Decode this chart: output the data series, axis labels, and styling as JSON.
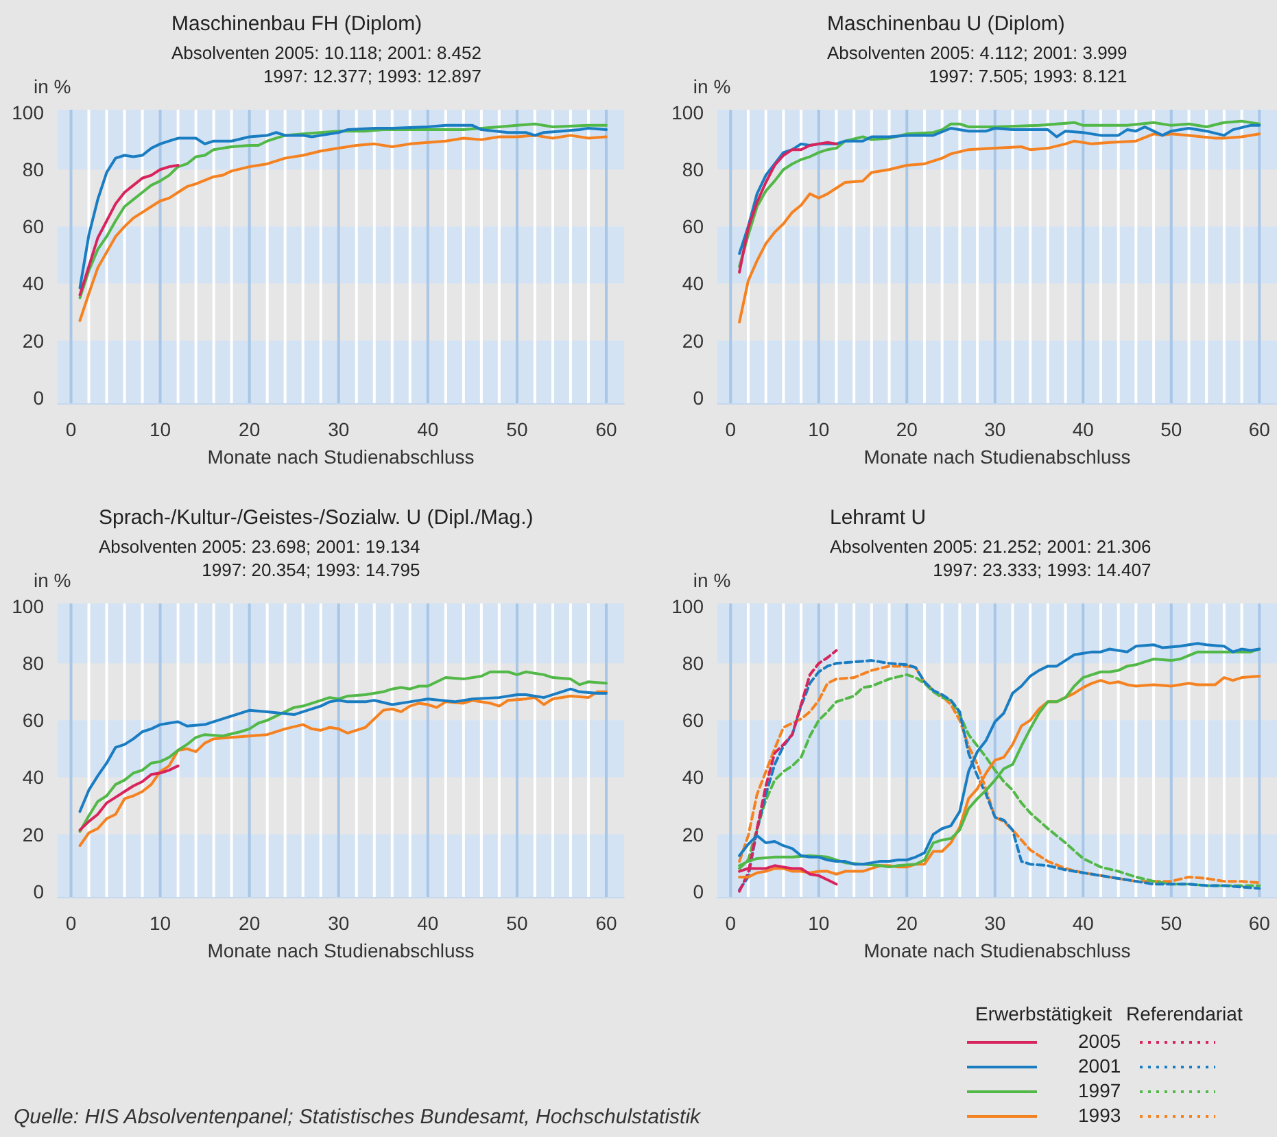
{
  "chart_data": [
    {
      "type": "line",
      "title": "Maschinenbau FH (Diplom)",
      "subtitle": "Absolventen 2005: 10.118; 2001: 8.452\n1997: 12.377; 1993: 12.897",
      "xlabel": "Monate nach Studienabschluss",
      "ylabel": "in %",
      "xlim": [
        -1.5,
        62
      ],
      "ylim": [
        -2,
        101
      ],
      "xticks": [
        0,
        10,
        20,
        30,
        40,
        50,
        60
      ],
      "yticks": [
        0,
        20,
        40,
        60,
        80,
        100
      ],
      "grid": "x",
      "marker": "none",
      "line_style": "solid",
      "bands": [
        {
          "axis": "y",
          "from": -2,
          "to": 20,
          "color": "#d4e3f4"
        },
        {
          "axis": "y",
          "from": 40,
          "to": 60,
          "color": "#d4e3f4"
        },
        {
          "axis": "y",
          "from": 80,
          "to": 101,
          "color": "#d4e3f4"
        }
      ],
      "series": [
        {
          "color": "#f58220",
          "x": [
            1,
            2,
            3,
            4,
            5,
            6,
            7,
            8,
            9,
            10,
            11,
            12,
            13,
            14,
            16,
            17,
            18,
            20,
            22,
            24,
            26,
            28,
            30,
            32,
            34,
            36,
            38,
            40,
            42,
            44,
            46,
            48,
            50,
            52,
            54,
            56,
            58,
            60
          ],
          "values": [
            27,
            36.5,
            45.5,
            51,
            56.5,
            60,
            63,
            65,
            67,
            69,
            70,
            72,
            74,
            75,
            77.5,
            78,
            79.5,
            81,
            82,
            84,
            85,
            86.5,
            87.5,
            88.5,
            89,
            88,
            89,
            89.5,
            90,
            91,
            90.5,
            91.5,
            91.5,
            92,
            91,
            92,
            91,
            91.5
          ]
        },
        {
          "color": "#52b847",
          "x": [
            1,
            2,
            3,
            4,
            5,
            6,
            7,
            8,
            9,
            10,
            11,
            12,
            13,
            14,
            15,
            16,
            18,
            20,
            21,
            22,
            24,
            26,
            28,
            30,
            33,
            35,
            40,
            44,
            48,
            50,
            52,
            54,
            58,
            60
          ],
          "values": [
            35,
            44.5,
            52,
            56.5,
            62,
            67,
            69.5,
            72,
            74.5,
            76,
            78,
            81,
            82,
            84.5,
            85,
            87,
            88,
            88.5,
            88.5,
            90,
            92,
            92.5,
            93,
            93.5,
            93.5,
            94,
            94,
            94,
            95,
            95.5,
            96,
            95,
            95.5,
            95.5
          ]
        },
        {
          "color": "#1a7dc2",
          "x": [
            1,
            2,
            3,
            4,
            5,
            6,
            7,
            8,
            9,
            10,
            11,
            12,
            14,
            15,
            16,
            18,
            20,
            22,
            23,
            24,
            26,
            27,
            28,
            30,
            31,
            34,
            36,
            40,
            42,
            45,
            46,
            49,
            51,
            52,
            53,
            55,
            57,
            58,
            60
          ],
          "values": [
            38.5,
            57,
            69.5,
            79,
            84,
            85,
            84.5,
            85,
            87.5,
            89,
            90,
            91,
            91,
            89,
            90,
            90,
            91.5,
            92,
            93,
            92,
            92,
            91.5,
            92,
            93,
            94,
            94.5,
            94.5,
            95,
            95.5,
            95.5,
            94,
            93,
            93,
            92,
            93,
            93.5,
            94,
            94.5,
            94
          ]
        },
        {
          "color": "#d8245c",
          "x": [
            1,
            2,
            3,
            4,
            5,
            6,
            7,
            8,
            9,
            10,
            11,
            12
          ],
          "values": [
            36,
            46,
            56,
            62,
            68,
            72,
            74.5,
            77,
            78,
            80,
            81,
            81.5
          ]
        }
      ]
    },
    {
      "type": "line",
      "title": "Maschinenbau U (Diplom)",
      "subtitle": "Absolventen 2005: 4.112; 2001: 3.999\n1997: 7.505; 1993: 8.121",
      "xlabel": "Monate nach Studienabschluss",
      "ylabel": "in %",
      "xlim": [
        -1.5,
        62
      ],
      "ylim": [
        -2,
        101
      ],
      "xticks": [
        0,
        10,
        20,
        30,
        40,
        50,
        60
      ],
      "yticks": [
        0,
        20,
        40,
        60,
        80,
        100
      ],
      "grid": "x",
      "marker": "none",
      "line_style": "solid",
      "bands": [
        {
          "axis": "y",
          "from": -2,
          "to": 20,
          "color": "#d4e3f4"
        },
        {
          "axis": "y",
          "from": 40,
          "to": 60,
          "color": "#d4e3f4"
        },
        {
          "axis": "y",
          "from": 80,
          "to": 101,
          "color": "#d4e3f4"
        }
      ],
      "series": [
        {
          "color": "#f58220",
          "x": [
            1,
            2,
            3,
            4,
            5,
            6,
            7,
            8,
            9,
            10,
            11,
            12,
            13,
            15,
            16,
            18,
            20,
            22,
            24,
            25,
            27,
            30,
            33,
            34,
            36,
            38,
            39,
            41,
            43,
            46,
            48,
            49,
            50,
            52,
            55,
            56,
            58,
            60
          ],
          "values": [
            26.5,
            41,
            48,
            54,
            58,
            61,
            65,
            67.5,
            71.5,
            70,
            71.5,
            73.5,
            75.5,
            76,
            79,
            80,
            81.5,
            82,
            84,
            85.5,
            87,
            87.5,
            88,
            87,
            87.5,
            89,
            90,
            89,
            89.5,
            90,
            92.5,
            92,
            92.5,
            92,
            91,
            91,
            91.5,
            92.5
          ]
        },
        {
          "color": "#52b847",
          "x": [
            1,
            2,
            3,
            4,
            5,
            6,
            7,
            8,
            9,
            10,
            11,
            12,
            13,
            15,
            16,
            18,
            20,
            23,
            24,
            25,
            26,
            27,
            30,
            35,
            39,
            40,
            45,
            48,
            50,
            52,
            54,
            56,
            58,
            60
          ],
          "values": [
            46,
            57,
            67,
            72.5,
            76,
            80,
            82,
            83.5,
            84.5,
            86,
            87,
            87.5,
            90,
            91.5,
            90.5,
            91,
            92.5,
            93,
            94,
            96,
            96,
            95,
            95,
            95.5,
            96.5,
            95.5,
            95.5,
            96.5,
            95.5,
            96,
            95,
            96.5,
            97,
            96
          ]
        },
        {
          "color": "#1a7dc2",
          "x": [
            1,
            2,
            3,
            4,
            5,
            6,
            7,
            8,
            9,
            10,
            12,
            13,
            15,
            16,
            18,
            20,
            23,
            25,
            27,
            29,
            30,
            32,
            36,
            37,
            38,
            40,
            42,
            44,
            45,
            46,
            47,
            49,
            50,
            52,
            54,
            56,
            57,
            59,
            60
          ],
          "values": [
            50.5,
            60,
            71.5,
            78,
            82,
            86,
            87,
            89,
            88.5,
            89,
            89,
            90,
            90,
            91.5,
            91.5,
            92,
            92,
            94.5,
            93.5,
            93.5,
            94.5,
            94,
            94,
            91.5,
            93.5,
            93,
            92,
            92,
            94,
            93.5,
            95,
            92,
            93.5,
            94.5,
            93.5,
            92,
            94,
            95.5,
            95.5
          ]
        },
        {
          "color": "#d8245c",
          "x": [
            1,
            2,
            3,
            4,
            5,
            6,
            7,
            8,
            9,
            10,
            11,
            12
          ],
          "values": [
            44,
            59.5,
            68.5,
            75.5,
            81.5,
            85,
            87,
            87,
            88.5,
            89,
            89.5,
            89
          ]
        }
      ]
    },
    {
      "type": "line",
      "title": "Sprach-/Kultur-/Geistes-/Sozialw. U (Dipl./Mag.)",
      "subtitle": "Absolventen 2005: 23.698; 2001: 19.134\n1997: 20.354; 1993: 14.795",
      "xlabel": "Monate nach Studienabschluss",
      "ylabel": "in %",
      "xlim": [
        -1.5,
        62
      ],
      "ylim": [
        -2,
        101
      ],
      "xticks": [
        0,
        10,
        20,
        30,
        40,
        50,
        60
      ],
      "yticks": [
        0,
        20,
        40,
        60,
        80,
        100
      ],
      "grid": "x",
      "marker": "none",
      "line_style": "solid",
      "annotations": [
        "Quelle: HIS Absolventenpanel; Statistisches Bundesamt, Hochschulstatistik"
      ],
      "bands": [
        {
          "axis": "y",
          "from": -2,
          "to": 20,
          "color": "#d4e3f4"
        },
        {
          "axis": "y",
          "from": 40,
          "to": 60,
          "color": "#d4e3f4"
        },
        {
          "axis": "y",
          "from": 80,
          "to": 101,
          "color": "#d4e3f4"
        }
      ],
      "series": [
        {
          "color": "#f58220",
          "x": [
            1,
            2,
            3,
            4,
            5,
            6,
            7,
            8,
            9,
            10,
            11,
            12,
            13,
            14,
            15,
            16,
            18,
            20,
            22,
            24,
            26,
            27,
            28,
            29,
            30,
            31,
            32,
            33,
            35,
            36,
            37,
            38,
            39,
            40,
            41,
            42,
            44,
            45,
            47,
            48,
            49,
            51,
            52,
            53,
            54,
            56,
            58,
            59,
            60
          ],
          "values": [
            16,
            20.5,
            22,
            25.5,
            27,
            32.5,
            33.5,
            35,
            37.5,
            42,
            44,
            49.5,
            50,
            49,
            52,
            53.5,
            54,
            54.5,
            55,
            57,
            58.5,
            57,
            56.5,
            57.5,
            57,
            55.5,
            56.5,
            57.5,
            63.5,
            64,
            63,
            65,
            66,
            65.5,
            64.5,
            66.5,
            66,
            67,
            66,
            65,
            67,
            67.5,
            68,
            65.5,
            67.5,
            68.5,
            68,
            70,
            70
          ]
        },
        {
          "color": "#52b847",
          "x": [
            1,
            2,
            3,
            4,
            5,
            6,
            7,
            8,
            9,
            10,
            11,
            12,
            13,
            14,
            15,
            17,
            19,
            20,
            21,
            22,
            24,
            25,
            26,
            28,
            29,
            30,
            31,
            33,
            35,
            36,
            37,
            38,
            39,
            40,
            42,
            44,
            46,
            47,
            49,
            50,
            51,
            53,
            54,
            56,
            57,
            58,
            60
          ],
          "values": [
            21,
            26.5,
            31.5,
            33.5,
            37.5,
            39,
            41.5,
            42.5,
            45,
            45.5,
            47,
            49.5,
            51.5,
            54,
            55,
            54.5,
            56,
            57,
            59,
            60,
            63,
            64.5,
            65,
            67,
            68,
            67.5,
            68.5,
            69,
            70,
            71,
            71.5,
            71,
            72,
            72,
            75,
            74.5,
            75.5,
            77,
            77,
            76,
            77,
            76,
            75,
            74.5,
            72.5,
            73.5,
            73
          ]
        },
        {
          "color": "#1a7dc2",
          "x": [
            1,
            2,
            3,
            4,
            5,
            6,
            7,
            8,
            9,
            10,
            12,
            13,
            15,
            16,
            18,
            20,
            22,
            25,
            26,
            28,
            29,
            30,
            31,
            33,
            34,
            36,
            38,
            40,
            43,
            45,
            48,
            50,
            51,
            53,
            55,
            56,
            57,
            59,
            60
          ],
          "values": [
            28,
            35.5,
            40.5,
            45,
            50.5,
            51.5,
            53.5,
            56,
            57,
            58.5,
            59.5,
            58,
            58.5,
            59.5,
            61.5,
            63.5,
            63,
            62,
            63,
            65,
            66.5,
            67,
            66.5,
            66.5,
            67,
            65.5,
            66.5,
            67.5,
            66.5,
            67.5,
            68,
            69,
            69,
            68,
            70,
            71,
            70,
            69.5,
            69.5
          ]
        },
        {
          "color": "#d8245c",
          "x": [
            1,
            2,
            3,
            4,
            5,
            6,
            7,
            8,
            9,
            10,
            11,
            12
          ],
          "values": [
            21.5,
            24.5,
            27,
            31,
            33,
            35,
            37,
            38.5,
            41,
            41.5,
            42.5,
            44
          ]
        }
      ]
    },
    {
      "type": "line",
      "title": "Lehramt U",
      "subtitle": "Absolventen 2005: 21.252; 2001: 21.306\n1997: 23.333; 1993: 14.407",
      "xlabel": "Monate nach Studienabschluss",
      "ylabel": "in %",
      "xlim": [
        -1.5,
        62
      ],
      "ylim": [
        -2,
        101
      ],
      "xticks": [
        0,
        10,
        20,
        30,
        40,
        50,
        60
      ],
      "yticks": [
        0,
        20,
        40,
        60,
        80,
        100
      ],
      "grid": "x",
      "marker": "none",
      "line_style": "solid",
      "legend": "bottom right",
      "legend_title": "Erwerbstätigkeit",
      "annotations": [
        "Referendariat"
      ],
      "bands": [
        {
          "axis": "y",
          "from": -2,
          "to": 20,
          "color": "#d4e3f4"
        },
        {
          "axis": "y",
          "from": 40,
          "to": 60,
          "color": "#d4e3f4"
        },
        {
          "axis": "y",
          "from": 80,
          "to": 101,
          "color": "#d4e3f4"
        }
      ],
      "series": [
        {
          "line_style": "dashed",
          "color": "#f58220",
          "x": [
            1,
            2,
            3,
            4,
            5,
            6,
            7,
            8,
            9,
            10,
            11,
            12,
            14,
            16,
            18,
            20,
            21,
            22,
            23,
            24,
            25,
            26,
            27,
            28,
            29,
            30,
            31,
            32,
            33,
            34,
            36,
            38,
            40,
            42,
            44,
            46,
            48,
            50,
            52,
            54,
            56,
            58,
            60
          ],
          "values": [
            10.5,
            19.5,
            34,
            42,
            50,
            57.5,
            59,
            60.5,
            63,
            67,
            73,
            74.5,
            75,
            77.5,
            79,
            79,
            78.5,
            73.5,
            70.5,
            68.5,
            65.5,
            60,
            51,
            44.5,
            35.5,
            26,
            24.5,
            21.5,
            18,
            14.5,
            10.5,
            8,
            6.5,
            5.5,
            4.5,
            3.5,
            3.5,
            3.5,
            5,
            4.5,
            3.5,
            3.5,
            3
          ]
        },
        {
          "line_style": "dashed",
          "color": "#52b847",
          "x": [
            1,
            2,
            3,
            4,
            5,
            6,
            7,
            8,
            9,
            10,
            11,
            12,
            13,
            14,
            15,
            16,
            18,
            20,
            21,
            22,
            23,
            24,
            25,
            26,
            27,
            28,
            29,
            30,
            31,
            32,
            33,
            34,
            36,
            38,
            40,
            42,
            44,
            46,
            48,
            50,
            52,
            54,
            56,
            58,
            60
          ],
          "values": [
            8,
            11,
            22,
            32,
            39,
            42,
            44,
            47,
            54.5,
            60,
            63,
            66.5,
            67.5,
            68.5,
            71.5,
            72,
            74.5,
            76,
            75,
            73,
            70,
            68,
            67,
            62,
            55,
            51,
            47,
            42.5,
            38.5,
            35.5,
            31,
            27.5,
            22,
            17,
            11.5,
            8.5,
            7,
            5,
            3.5,
            2.5,
            2.5,
            2,
            2,
            2,
            2
          ]
        },
        {
          "line_style": "dashed",
          "color": "#1a7dc2",
          "x": [
            1,
            2,
            3,
            4,
            5,
            6,
            7,
            8,
            9,
            10,
            11,
            12,
            14,
            16,
            18,
            20,
            21,
            22,
            23,
            24,
            25,
            26,
            27,
            28,
            29,
            30,
            31,
            32,
            33,
            34,
            36,
            38,
            40,
            42,
            44,
            46,
            48,
            50,
            52,
            54,
            56,
            58,
            60
          ],
          "values": [
            0.5,
            5,
            21.5,
            34,
            44.5,
            51,
            55,
            65,
            73,
            77,
            79,
            80,
            80.5,
            81,
            80,
            79.5,
            78.5,
            73.5,
            70.5,
            69,
            67,
            63,
            48.5,
            40.5,
            34,
            26,
            25,
            21.5,
            10.5,
            9.5,
            9,
            7.5,
            6.5,
            5.5,
            4.5,
            3.5,
            2.5,
            2.5,
            2.5,
            2,
            2,
            1.5,
            1
          ]
        },
        {
          "line_style": "dashed",
          "color": "#d8245c",
          "x": [
            1,
            2,
            3,
            4,
            5,
            6,
            7,
            8,
            9,
            10,
            11,
            12
          ],
          "values": [
            0,
            6.5,
            22,
            37,
            48.5,
            51.5,
            55,
            65.5,
            76,
            80,
            82,
            84.5
          ]
        },
        {
          "name": "1993",
          "color": "#f58220",
          "x": [
            1,
            2,
            3,
            4,
            5,
            6,
            7,
            8,
            9,
            10,
            11,
            12,
            13,
            14,
            15,
            16,
            17,
            18,
            19,
            20,
            21,
            22,
            23,
            24,
            25,
            26,
            27,
            28,
            29,
            30,
            31,
            32,
            33,
            34,
            35,
            36,
            37,
            38,
            39,
            40,
            41,
            42,
            43,
            44,
            45,
            46,
            48,
            50,
            52,
            53,
            55,
            56,
            57,
            58,
            60
          ],
          "values": [
            5,
            5,
            6.5,
            7,
            8,
            8,
            7,
            7,
            6.5,
            7,
            7,
            6,
            7,
            7,
            7,
            8,
            9,
            9,
            8.5,
            8.5,
            9.5,
            9.5,
            14,
            14,
            17,
            22.5,
            32.5,
            36,
            41.5,
            46,
            47,
            51.5,
            58,
            60,
            64,
            66.5,
            66.5,
            68,
            69.5,
            71.5,
            73,
            74,
            73,
            73.5,
            72.5,
            72,
            72.5,
            72,
            73,
            72.5,
            72.5,
            75,
            74,
            75,
            75.5
          ]
        },
        {
          "name": "1997",
          "color": "#52b847",
          "x": [
            1,
            2,
            3,
            5,
            7,
            9,
            11,
            13,
            15,
            17,
            18,
            19,
            21,
            22,
            23,
            24,
            25,
            26,
            27,
            28,
            29,
            30,
            31,
            32,
            33,
            34,
            35,
            36,
            37,
            38,
            39,
            40,
            41,
            42,
            43,
            44,
            45,
            46,
            47,
            48,
            50,
            51,
            53,
            55,
            57,
            59,
            60
          ],
          "values": [
            9,
            10.5,
            11.5,
            12,
            12,
            12.5,
            12,
            10,
            9.5,
            9,
            8.5,
            9,
            9.5,
            11,
            17,
            18,
            18.5,
            21.5,
            29,
            32.5,
            35.5,
            39,
            43,
            44.5,
            51,
            57,
            62.5,
            66.5,
            66.5,
            68,
            72,
            75,
            76,
            77,
            77,
            77.5,
            79,
            79.5,
            80.5,
            81.5,
            81,
            81.5,
            84,
            84,
            84,
            84,
            85
          ]
        },
        {
          "name": "2001",
          "color": "#1a7dc2",
          "x": [
            1,
            2,
            3,
            4,
            5,
            6,
            7,
            8,
            9,
            10,
            11,
            12,
            13,
            14,
            15,
            16,
            17,
            18,
            19,
            20,
            21,
            22,
            23,
            24,
            25,
            26,
            27,
            28,
            29,
            30,
            31,
            32,
            33,
            34,
            35,
            36,
            37,
            38,
            39,
            40,
            41,
            42,
            43,
            45,
            46,
            48,
            49,
            51,
            53,
            54,
            56,
            57,
            58,
            59,
            60
          ],
          "values": [
            12.5,
            16.5,
            19.5,
            17,
            17.5,
            16,
            15,
            12.5,
            12,
            12,
            11,
            10.5,
            10.5,
            9.5,
            9.5,
            10,
            10.5,
            10.5,
            11,
            11,
            12,
            13.5,
            20,
            22,
            23,
            28,
            42,
            49,
            53,
            59.5,
            62.5,
            69.5,
            72,
            75.5,
            77.5,
            79,
            79,
            81,
            83,
            83.5,
            84,
            84,
            85,
            84,
            86,
            86.5,
            85.5,
            86,
            87,
            86.5,
            86,
            84,
            85,
            84.5,
            85
          ]
        },
        {
          "name": "2005",
          "color": "#d8245c",
          "x": [
            1,
            2,
            3,
            4,
            5,
            6,
            7,
            8,
            9,
            10,
            11,
            12
          ],
          "values": [
            7,
            8,
            8,
            8,
            9,
            8.5,
            8,
            8,
            6,
            5.5,
            4,
            2.5
          ]
        }
      ]
    }
  ]
}
